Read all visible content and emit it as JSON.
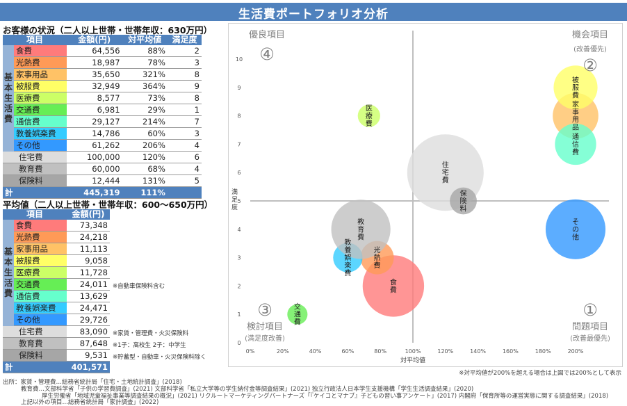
{
  "title": "生活費ポートフォリオ分析",
  "customer": {
    "heading": "お客様の状況（二人以上世帯・世帯年収：630万円）",
    "headers": [
      "項目",
      "金額(円)",
      "対平均値",
      "満足度"
    ],
    "group_label": "基本生活費",
    "rows": [
      {
        "name": "食費",
        "amount": "64,556",
        "ratio": "88%",
        "sat": "2",
        "color": "#ff7b7b"
      },
      {
        "name": "光熱費",
        "amount": "18,987",
        "ratio": "78%",
        "sat": "3",
        "color": "#ff9a57"
      },
      {
        "name": "家事用品",
        "amount": "35,650",
        "ratio": "321%",
        "sat": "8",
        "color": "#ffc266"
      },
      {
        "name": "被服費",
        "amount": "32,949",
        "ratio": "364%",
        "sat": "9",
        "color": "#ffff66"
      },
      {
        "name": "医療費",
        "amount": "8,577",
        "ratio": "73%",
        "sat": "8",
        "color": "#ccff66"
      },
      {
        "name": "交通費",
        "amount": "6,981",
        "ratio": "29%",
        "sat": "1",
        "color": "#66ee55"
      },
      {
        "name": "通信費",
        "amount": "29,127",
        "ratio": "214%",
        "sat": "7",
        "color": "#66ffcc"
      },
      {
        "name": "教養娯楽費",
        "amount": "14,786",
        "ratio": "60%",
        "sat": "3",
        "color": "#33ccff"
      },
      {
        "name": "その他",
        "amount": "61,262",
        "ratio": "206%",
        "sat": "4",
        "color": "#3399ff"
      }
    ],
    "other_rows": [
      {
        "name": "住宅費",
        "amount": "100,000",
        "ratio": "120%",
        "sat": "6",
        "color": "#dddddd"
      },
      {
        "name": "教育費",
        "amount": "60,000",
        "ratio": "68%",
        "sat": "4",
        "color": "#c0c0c0"
      },
      {
        "name": "保険料",
        "amount": "12,444",
        "ratio": "131%",
        "sat": "5",
        "color": "#a6a6a6"
      }
    ],
    "total": {
      "label": "計",
      "amount": "445,319",
      "ratio": "111%"
    }
  },
  "average": {
    "heading": "平均値（二人以上世帯・世帯年収：600～650万円）",
    "headers": [
      "項目",
      "金額(円)"
    ],
    "group_label": "基本生活費",
    "rows": [
      {
        "name": "食費",
        "amount": "73,348",
        "note": ""
      },
      {
        "name": "光熱費",
        "amount": "24,218",
        "note": ""
      },
      {
        "name": "家事用品",
        "amount": "11,113",
        "note": ""
      },
      {
        "name": "被服費",
        "amount": "9,058",
        "note": ""
      },
      {
        "name": "医療費",
        "amount": "11,728",
        "note": ""
      },
      {
        "name": "交通費",
        "amount": "24,011",
        "note": "※自動車保険料含む"
      },
      {
        "name": "通信費",
        "amount": "13,629",
        "note": ""
      },
      {
        "name": "教養娯楽費",
        "amount": "24,471",
        "note": ""
      },
      {
        "name": "その他",
        "amount": "29,726",
        "note": ""
      }
    ],
    "other_rows": [
      {
        "name": "住宅費",
        "amount": "83,090",
        "note": "※家賃・管理費・火災保険料"
      },
      {
        "name": "教育費",
        "amount": "87,648",
        "note": "※1子：高校生 2子：中学生"
      },
      {
        "name": "保険料",
        "amount": "9,531",
        "note": "※貯蓄型・自動車・火災保険料除く"
      }
    ],
    "total": {
      "label": "計",
      "amount": "401,571"
    }
  },
  "chart_data": {
    "type": "bubble",
    "xlabel": "対平均値",
    "ylabel": "満足度",
    "xlim": [
      0,
      200
    ],
    "ylim": [
      0,
      10
    ],
    "x_ticks": [
      "0%",
      "20%",
      "40%",
      "60%",
      "80%",
      "100%",
      "120%",
      "140%",
      "160%",
      "180%",
      "200%"
    ],
    "y_ticks": [
      "0",
      "1",
      "2",
      "3",
      "4",
      "5",
      "6",
      "7",
      "8",
      "9",
      "10"
    ],
    "divider": {
      "x": 100,
      "y": 5
    },
    "quadrants": [
      {
        "num": "④",
        "label": "優良項目",
        "sub": ""
      },
      {
        "num": "②",
        "label": "機会項目",
        "sub": "(改善優先)"
      },
      {
        "num": "③",
        "label": "検討項目",
        "sub": "(満足度改善)"
      },
      {
        "num": "①",
        "label": "問題項目",
        "sub": "(改善最優先)"
      }
    ],
    "points": [
      {
        "name": "食費",
        "x": 88,
        "y": 2,
        "size": 64556,
        "color": "#ff7b7b"
      },
      {
        "name": "光熱費",
        "x": 78,
        "y": 3,
        "size": 18987,
        "color": "#ff9a57"
      },
      {
        "name": "家事用品",
        "x": 200,
        "y": 8,
        "size": 35650,
        "color": "#ffc266"
      },
      {
        "name": "被服費",
        "x": 200,
        "y": 9,
        "size": 32949,
        "color": "#ffff66"
      },
      {
        "name": "医療費",
        "x": 73,
        "y": 8,
        "size": 8577,
        "color": "#ccff66"
      },
      {
        "name": "交通費",
        "x": 29,
        "y": 1,
        "size": 6981,
        "color": "#66ee55"
      },
      {
        "name": "通信費",
        "x": 200,
        "y": 7,
        "size": 29127,
        "color": "#66ffcc"
      },
      {
        "name": "教養娯楽費",
        "x": 60,
        "y": 3,
        "size": 14786,
        "color": "#33ccff"
      },
      {
        "name": "その他",
        "x": 200,
        "y": 4,
        "size": 61262,
        "color": "#3399ff"
      },
      {
        "name": "住宅費",
        "x": 120,
        "y": 6,
        "size": 100000,
        "color": "#dddddd"
      },
      {
        "name": "教育費",
        "x": 68,
        "y": 4,
        "size": 60000,
        "color": "#c0c0c0"
      },
      {
        "name": "保険料",
        "x": 131,
        "y": 5,
        "size": 12444,
        "color": "#a6a6a6"
      }
    ],
    "footnote": "※対平均値が200%を超える場合は上図では200%として表示"
  },
  "sources": [
    "出所：家賃・管理費…総務省統計局「住宅・土地統計調査」(2018)",
    "教育費…文部科学省「子供の学習費調査」(2021)  文部科学省「私立大学等の学生納付金等調査結果」(2021)  独立行政法人日本学生支援機構「学生生活調査結果」(2020)",
    "厚生労働省「地域児童福祉事業等調査結果の概況」(2021)  リクルートマーケティングパートナーズ「『ケイコとマナブ』子どもの習い事アンケート」(2017)  内閣府「保育所等の運営実態に関する調査結果」(2018)",
    "上記以外の項目…総務省統計局「家計調査」(2022)"
  ]
}
